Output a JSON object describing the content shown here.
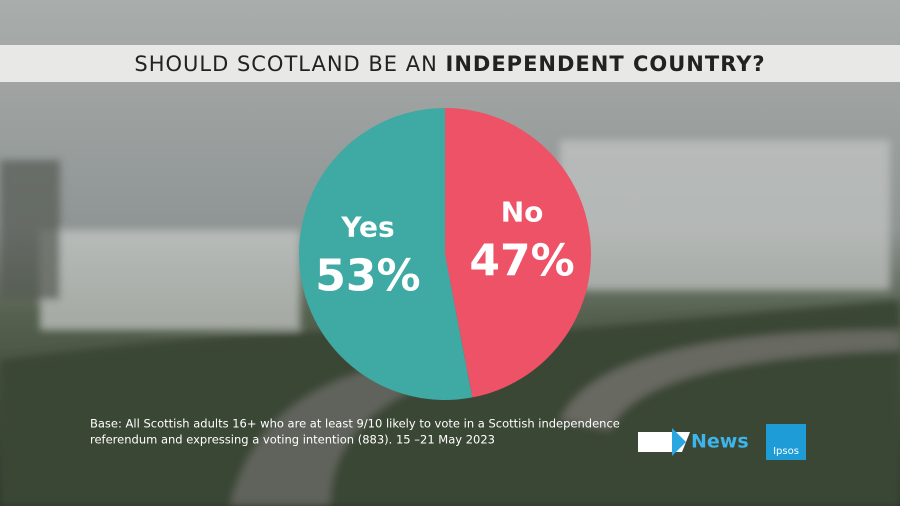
{
  "chart_data": {
    "type": "pie",
    "title_parts": [
      "SHOULD SCOTLAND BE AN",
      "INDEPENDENT COUNTRY?"
    ],
    "categories": [
      "Yes",
      "No"
    ],
    "values": [
      53,
      47
    ],
    "value_labels": [
      "53%",
      "47%"
    ],
    "colors": [
      "#3fa9a4",
      "#ee5267"
    ],
    "footnote": [
      "Base: All Scottish adults 16+ who are at least 9/10 likely to vote in a Scottish independence",
      "referendum and expressing a voting intention (883). 15 –21 May 2023"
    ],
    "logos": [
      "News",
      "Ipsos"
    ]
  }
}
